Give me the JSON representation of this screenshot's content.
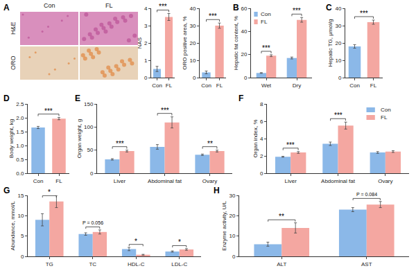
{
  "chart_data": [
    {
      "type": "image",
      "label": "A",
      "columns": [
        "Con",
        "FL"
      ],
      "rows": [
        "H&E",
        "ORO"
      ]
    },
    {
      "type": "bar",
      "categories": [
        "Con",
        "FL"
      ],
      "values": [
        0.5,
        3.5
      ],
      "errors": [
        0.15,
        0.2
      ],
      "colors": [
        "#8bb8e8",
        "#f4a7a1"
      ],
      "ylim": [
        0,
        4
      ],
      "yticks": [
        0,
        1,
        2,
        3,
        4
      ],
      "y_label": "NAS",
      "annotations": [
        {
          "text": "***"
        }
      ]
    },
    {
      "type": "bar",
      "categories": [
        "Con",
        "FL"
      ],
      "values": [
        3,
        30
      ],
      "errors": [
        0.8,
        1.5
      ],
      "colors": [
        "#8bb8e8",
        "#f4a7a1"
      ],
      "ylim": [
        0,
        40
      ],
      "yticks": [
        0,
        10,
        20,
        30,
        40
      ],
      "y_label": "ORO positive area, %",
      "annotations": [
        {
          "text": "***"
        }
      ]
    },
    {
      "type": "bar",
      "label": "B",
      "categories": [
        "Wet",
        "Dry"
      ],
      "series": [
        {
          "name": "Con",
          "color": "#8bb8e8",
          "values": [
            4,
            17
          ],
          "errors": [
            0.3,
            0.8
          ]
        },
        {
          "name": "FL",
          "color": "#f4a7a1",
          "values": [
            19,
            50
          ],
          "errors": [
            0.8,
            2
          ]
        }
      ],
      "ylim": [
        0,
        60
      ],
      "yticks": [
        0,
        20,
        40,
        60
      ],
      "y_label": "Hepatic fat content, %",
      "legend": "upper left",
      "annotations": [
        {
          "text": "***",
          "category": "Wet"
        },
        {
          "text": "***",
          "category": "Dry"
        }
      ]
    },
    {
      "type": "bar",
      "label": "C",
      "categories": [
        "Con",
        "FL"
      ],
      "values": [
        18,
        32
      ],
      "errors": [
        1,
        1.2
      ],
      "colors": [
        "#8bb8e8",
        "#f4a7a1"
      ],
      "ylim": [
        0,
        40
      ],
      "yticks": [
        0,
        10,
        20,
        30,
        40
      ],
      "y_label": "Hepatic TG, μmol/g",
      "annotations": [
        {
          "text": "***"
        }
      ]
    },
    {
      "type": "bar",
      "label": "D",
      "categories": [
        "Con",
        "FL"
      ],
      "values": [
        1.65,
        1.97
      ],
      "errors": [
        0.04,
        0.04
      ],
      "colors": [
        "#8bb8e8",
        "#f4a7a1"
      ],
      "ylim": [
        0,
        2.5
      ],
      "yticks": [
        {
          "value": 0,
          "label": "0.0"
        },
        {
          "value": 0.5,
          "label": "0.5"
        },
        {
          "value": 1,
          "label": "1.0"
        },
        {
          "value": 1.5,
          "label": "1.5"
        },
        {
          "value": 2,
          "label": "2.0"
        },
        {
          "value": 2.5,
          "label": "2.5"
        }
      ],
      "y_label": "Body weight, kg",
      "annotations": [
        {
          "text": "***"
        }
      ]
    },
    {
      "type": "bar",
      "label": "E",
      "categories": [
        "Liver",
        "Abdominal fat",
        "Ovary"
      ],
      "series": [
        {
          "name": "Con",
          "color": "#8bb8e8",
          "values": [
            30,
            57,
            40
          ],
          "errors": [
            1.5,
            5,
            1.5
          ]
        },
        {
          "name": "FL",
          "color": "#f4a7a1",
          "values": [
            48,
            110,
            48
          ],
          "errors": [
            2,
            12,
            2
          ]
        }
      ],
      "ylim": [
        0,
        150
      ],
      "yticks": [
        0,
        50,
        100,
        150
      ],
      "y_label": "Organ weight, g",
      "annotations": [
        {
          "text": "***",
          "category": "Liver"
        },
        {
          "text": "***",
          "category": "Abdominal fat"
        },
        {
          "text": "**",
          "category": "Ovary"
        }
      ]
    },
    {
      "type": "bar",
      "label": "F",
      "categories": [
        "Liver",
        "Abdominal fat",
        "Ovary"
      ],
      "series": [
        {
          "name": "Con",
          "color": "#8bb8e8",
          "values": [
            1.9,
            3.4,
            2.4
          ],
          "errors": [
            0.05,
            0.2,
            0.1
          ]
        },
        {
          "name": "FL",
          "color": "#f4a7a1",
          "values": [
            2.4,
            5.5,
            2.5
          ],
          "errors": [
            0.1,
            0.4,
            0.1
          ]
        }
      ],
      "ylim": [
        0,
        8
      ],
      "yticks": [
        0,
        2,
        4,
        6,
        8
      ],
      "y_label": "Organ index, %",
      "legend": "upper right",
      "annotations": [
        {
          "text": "***",
          "category": "Liver"
        },
        {
          "text": "***",
          "category": "Abdominal fat"
        }
      ]
    },
    {
      "type": "bar",
      "label": "G",
      "categories": [
        "TG",
        "TC",
        "HDL-C",
        "LDL-C"
      ],
      "series": [
        {
          "name": "Con",
          "color": "#8bb8e8",
          "values": [
            9,
            5.5,
            1.8,
            1.2
          ],
          "errors": [
            1.5,
            0.3,
            0.4,
            0.15
          ]
        },
        {
          "name": "FL",
          "color": "#f4a7a1",
          "values": [
            13.5,
            6,
            0.4,
            1.7
          ],
          "errors": [
            1.5,
            0.5,
            0.1,
            0.2
          ]
        }
      ],
      "ylim": [
        0,
        15
      ],
      "yticks": [
        0,
        5,
        10,
        15
      ],
      "y_label": "Abundance, mmol/L",
      "annotations": [
        {
          "text": "*",
          "category": "TG"
        },
        {
          "text": "P = 0.056",
          "category": "TC"
        },
        {
          "text": "*",
          "category": "HDL-C"
        },
        {
          "text": "*",
          "category": "LDL-C"
        }
      ]
    },
    {
      "type": "bar",
      "label": "H",
      "categories": [
        "ALT",
        "AST"
      ],
      "series": [
        {
          "name": "Con",
          "color": "#8bb8e8",
          "values": [
            6,
            23
          ],
          "errors": [
            1,
            1
          ]
        },
        {
          "name": "FL",
          "color": "#f4a7a1",
          "values": [
            14,
            25.5
          ],
          "errors": [
            2.5,
            1.5
          ]
        }
      ],
      "ylim": [
        0,
        30
      ],
      "yticks": [
        0,
        10,
        20,
        30
      ],
      "y_label": "Enzyme activity, U/L",
      "annotations": [
        {
          "text": "**",
          "category": "ALT"
        },
        {
          "text": "P = 0.084",
          "category": "AST"
        }
      ]
    }
  ]
}
